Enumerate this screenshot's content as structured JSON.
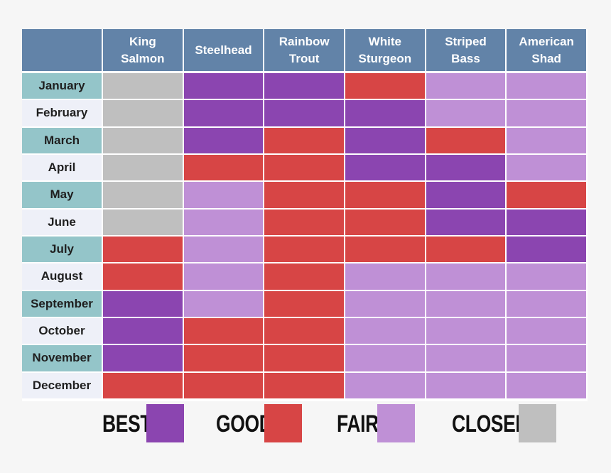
{
  "chart_data": {
    "type": "heatmap",
    "columns": [
      "King\nSalmon",
      "Steelhead",
      "Rainbow\nTrout",
      "White\nSturgeon",
      "Striped\nBass",
      "American\nShad"
    ],
    "rows": [
      "January",
      "February",
      "March",
      "April",
      "May",
      "June",
      "July",
      "August",
      "September",
      "October",
      "November",
      "December"
    ],
    "values": [
      [
        "CLOSED",
        "BEST",
        "BEST",
        "GOOD",
        "FAIR",
        "FAIR"
      ],
      [
        "CLOSED",
        "BEST",
        "BEST",
        "BEST",
        "FAIR",
        "FAIR"
      ],
      [
        "CLOSED",
        "BEST",
        "GOOD",
        "BEST",
        "GOOD",
        "FAIR"
      ],
      [
        "CLOSED",
        "GOOD",
        "GOOD",
        "BEST",
        "BEST",
        "FAIR"
      ],
      [
        "CLOSED",
        "FAIR",
        "GOOD",
        "GOOD",
        "BEST",
        "GOOD"
      ],
      [
        "CLOSED",
        "FAIR",
        "GOOD",
        "GOOD",
        "BEST",
        "BEST"
      ],
      [
        "GOOD",
        "FAIR",
        "GOOD",
        "GOOD",
        "GOOD",
        "BEST"
      ],
      [
        "GOOD",
        "FAIR",
        "GOOD",
        "FAIR",
        "FAIR",
        "FAIR"
      ],
      [
        "BEST",
        "FAIR",
        "GOOD",
        "FAIR",
        "FAIR",
        "FAIR"
      ],
      [
        "BEST",
        "GOOD",
        "GOOD",
        "FAIR",
        "FAIR",
        "FAIR"
      ],
      [
        "BEST",
        "GOOD",
        "GOOD",
        "FAIR",
        "FAIR",
        "FAIR"
      ],
      [
        "GOOD",
        "GOOD",
        "GOOD",
        "FAIR",
        "FAIR",
        "FAIR"
      ]
    ],
    "legend": [
      {
        "label": "BEST",
        "color": "#8b45b0"
      },
      {
        "label": "GOOD",
        "color": "#d74545"
      },
      {
        "label": "FAIR",
        "color": "#bf90d6"
      },
      {
        "label": "CLOSED",
        "color": "#bfbfbf"
      }
    ],
    "header_color": "#6283a8",
    "row_label_colors": [
      "#94c5c9",
      "#eef0f8"
    ]
  }
}
